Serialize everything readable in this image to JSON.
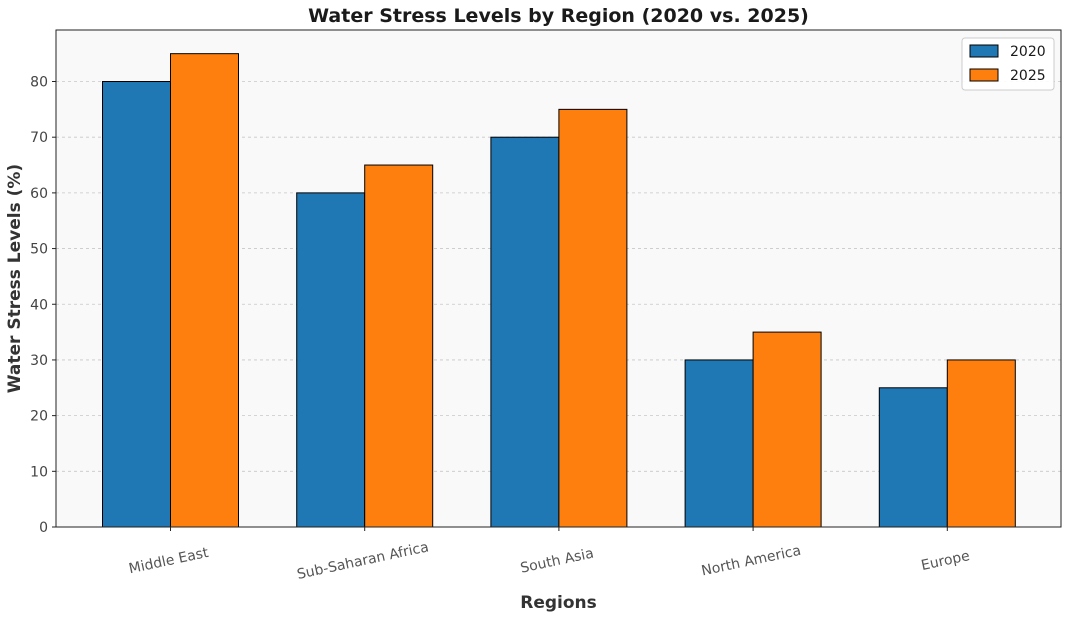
{
  "chart_data": {
    "type": "bar",
    "title": "Water Stress Levels by Region (2020 vs. 2025)",
    "xlabel": "Regions",
    "ylabel": "Water Stress Levels (%)",
    "categories": [
      "Middle East",
      "Sub-Saharan Africa",
      "South Asia",
      "North America",
      "Europe"
    ],
    "series": [
      {
        "name": "2020",
        "values": [
          80,
          60,
          70,
          30,
          25
        ],
        "color": "#1f77b4"
      },
      {
        "name": "2025",
        "values": [
          85,
          65,
          75,
          35,
          30
        ],
        "color": "#ff7f0e"
      }
    ],
    "ylim": [
      0,
      89.25
    ],
    "yticks": [
      0,
      10,
      20,
      30,
      40,
      50,
      60,
      70,
      80
    ],
    "grid": true,
    "legend_position": "top-right",
    "plot_background": "#f9f9f9",
    "bar_edge_color": "#000000"
  }
}
